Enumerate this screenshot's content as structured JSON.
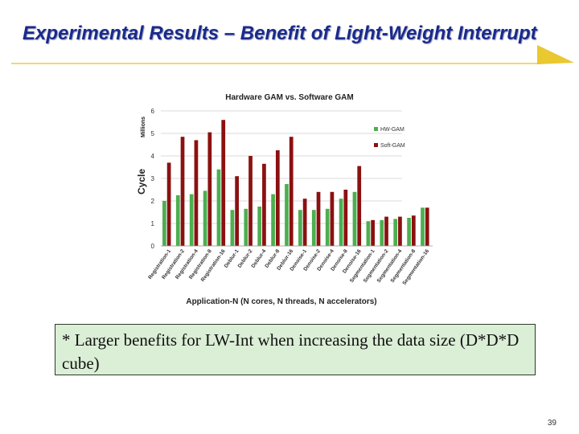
{
  "slide": {
    "title": "Experimental Results – Benefit of Light-Weight Interrupt",
    "callout": "* Larger benefits for LW-Int when increasing the data size (D*D*D cube)",
    "page_number": "39",
    "accent_line_color": "#e8c21a",
    "title_color": "#1a2a8c"
  },
  "chart_data": {
    "type": "bar",
    "title": "Hardware GAM vs. Software GAM",
    "xlabel": "Application-N (N cores, N threads, N accelerators)",
    "ylabel": "Cycle",
    "yunit": "Millions",
    "ylim": [
      0,
      6
    ],
    "yticks": [
      "0",
      "1",
      "2",
      "3",
      "4",
      "5",
      "6"
    ],
    "grid": true,
    "legend_position": "top-right",
    "categories": [
      "Registration-1",
      "Registration-2",
      "Registration-4",
      "Registration-8",
      "Registration-16",
      "Deblur-1",
      "Deblur-2",
      "Deblur-4",
      "Deblur-8",
      "Deblur-16",
      "Denoise-1",
      "Denoise-2",
      "Denoise-4",
      "Denoise-8",
      "Denoise-16",
      "Segmentation-1",
      "Segmentation-2",
      "Segmentation-4",
      "Segmentation-8",
      "Segmentation-16"
    ],
    "series": [
      {
        "name": "HW-GAM",
        "color": "#4caf50",
        "values": [
          2.0,
          2.25,
          2.3,
          2.45,
          3.4,
          1.6,
          1.65,
          1.75,
          2.3,
          2.75,
          1.6,
          1.6,
          1.65,
          2.1,
          2.4,
          1.1,
          1.15,
          1.2,
          1.25,
          1.7
        ]
      },
      {
        "name": "Soft-GAM",
        "color": "#8b1111",
        "values": [
          3.7,
          4.85,
          4.7,
          5.05,
          5.6,
          3.1,
          4.0,
          3.65,
          4.25,
          4.85,
          2.1,
          2.4,
          2.4,
          2.5,
          3.55,
          1.15,
          1.3,
          1.3,
          1.35,
          1.7
        ]
      }
    ]
  }
}
